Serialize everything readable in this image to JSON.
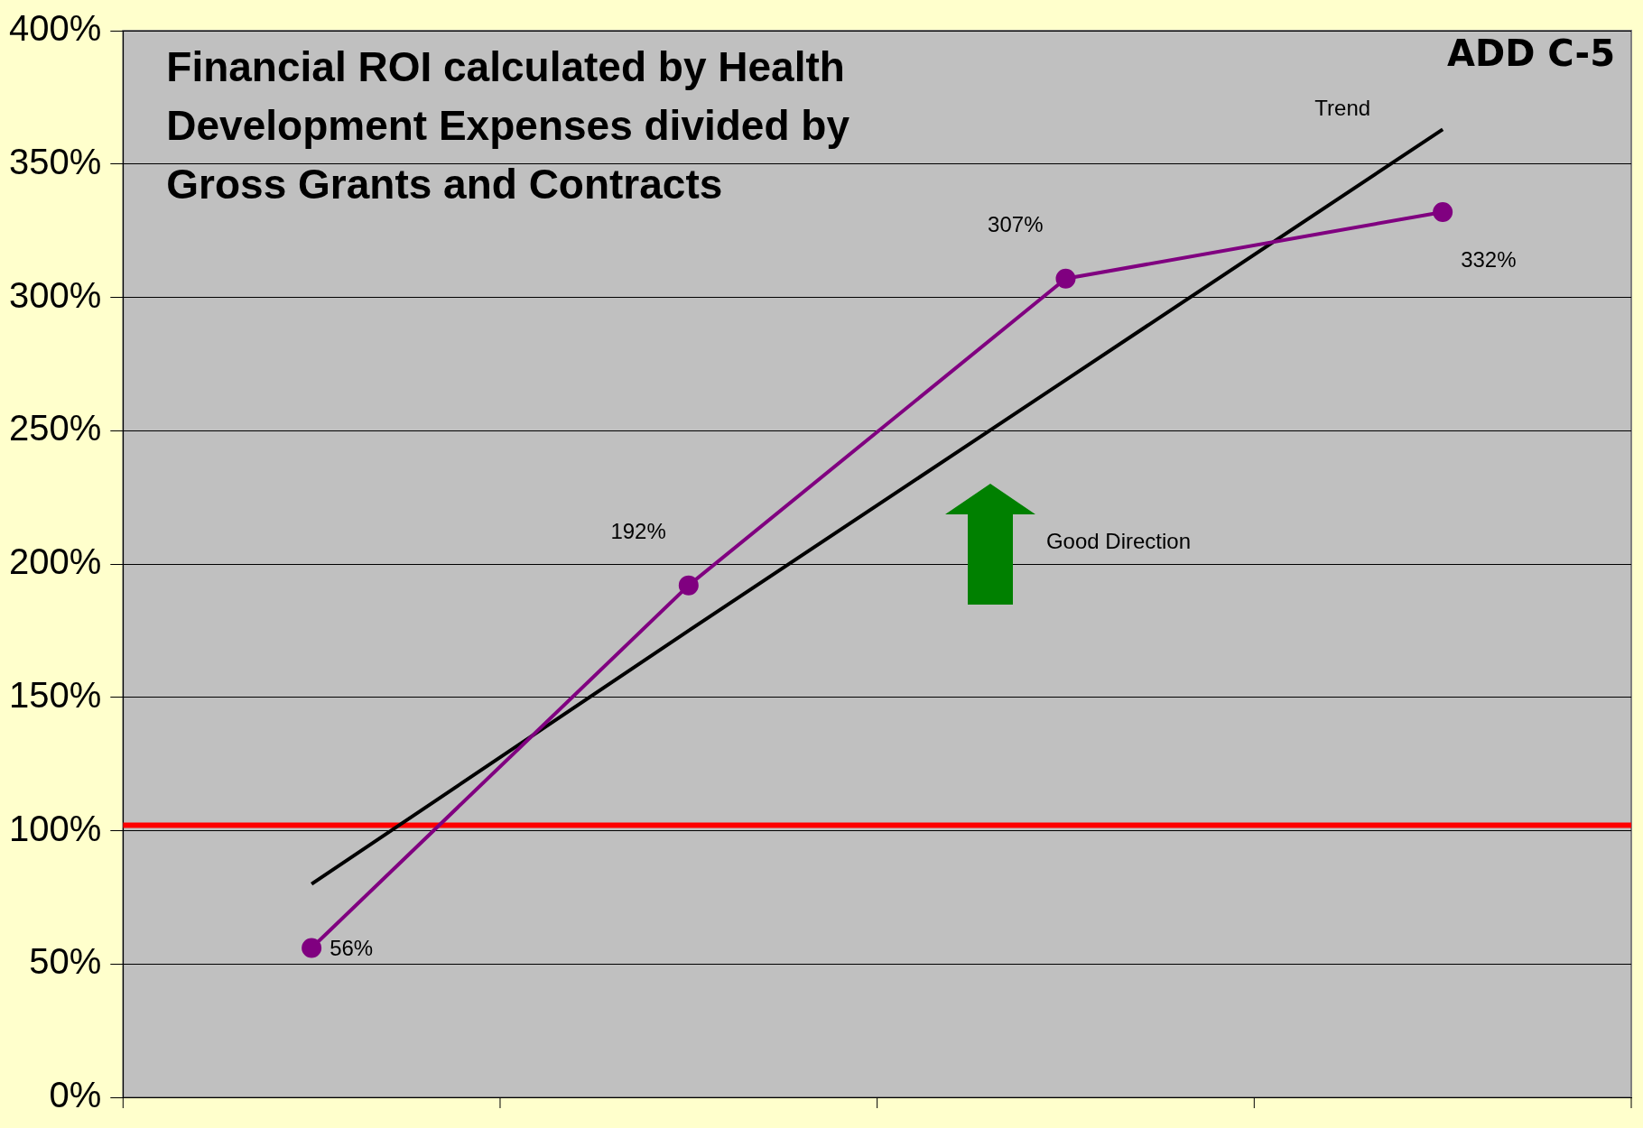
{
  "chart_data": {
    "type": "line",
    "title": "Financial ROI calculated by Health Development Expenses divided by Gross Grants and Contracts",
    "categories": [
      null,
      null,
      null,
      null
    ],
    "series": [
      {
        "color": "#800080",
        "values": [
          56,
          192,
          307,
          332
        ],
        "value_labels": [
          "56%",
          "192%",
          "307%",
          "332%"
        ],
        "marker": "circle"
      },
      {
        "name": "Trend",
        "color": "#000000",
        "values": [
          80,
          175,
          269,
          363
        ],
        "marker": "none"
      }
    ],
    "ylim": [
      0,
      400
    ],
    "yticks": [
      {
        "value": 0,
        "label": "0%"
      },
      {
        "value": 50,
        "label": "50%"
      },
      {
        "value": 100,
        "label": "100%"
      },
      {
        "value": 150,
        "label": "150%"
      },
      {
        "value": 200,
        "label": "200%"
      },
      {
        "value": 250,
        "label": "250%"
      },
      {
        "value": 300,
        "label": "300%"
      },
      {
        "value": 350,
        "label": "350%"
      },
      {
        "value": 400,
        "label": "400%"
      }
    ],
    "ref_lines": [
      {
        "axis": "y",
        "value": 102,
        "color": "#ff0000"
      }
    ],
    "annotations": [
      "Good Direction",
      "ADD C-5"
    ],
    "grid": "y",
    "legend": false,
    "tick_labels": "y"
  }
}
